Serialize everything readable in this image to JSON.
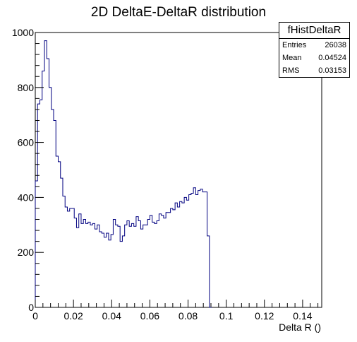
{
  "chart_data": {
    "type": "histogram",
    "title": "2D DeltaE-DeltaR distribution",
    "xlabel": "Delta R ()",
    "ylabel": "",
    "xlim": [
      0,
      0.15
    ],
    "ylim": [
      0,
      1000
    ],
    "x_ticks": [
      0,
      0.02,
      0.04,
      0.06,
      0.08,
      0.1,
      0.12,
      0.14
    ],
    "x_tick_labels": [
      "0",
      "0.02",
      "0.04",
      "0.06",
      "0.08",
      "0.1",
      "0.12",
      "0.14"
    ],
    "y_ticks": [
      0,
      200,
      400,
      600,
      800,
      1000
    ],
    "y_tick_labels": [
      "0",
      "200",
      "400",
      "600",
      "800",
      "1000"
    ],
    "y_axis_exponent": "",
    "bin_width": 0.0012,
    "bin_start": 0,
    "values": [
      460,
      740,
      755,
      860,
      970,
      905,
      800,
      720,
      680,
      550,
      530,
      470,
      405,
      365,
      350,
      360,
      360,
      325,
      290,
      340,
      305,
      320,
      305,
      310,
      300,
      305,
      285,
      300,
      275,
      270,
      255,
      270,
      245,
      265,
      320,
      300,
      295,
      240,
      260,
      300,
      315,
      295,
      305,
      295,
      330,
      315,
      285,
      300,
      300,
      320,
      335,
      310,
      305,
      315,
      340,
      335,
      325,
      345,
      345,
      360,
      355,
      380,
      365,
      385,
      380,
      400,
      390,
      410,
      415,
      435,
      410,
      425,
      430,
      420,
      420,
      260,
      0
    ],
    "line_color": "#000080",
    "stats": {
      "name": "fHistDeltaR",
      "rows": [
        {
          "label": "Entries",
          "value": "26038"
        },
        {
          "label": "Mean",
          "value": "0.04524"
        },
        {
          "label": "RMS",
          "value": "0.03153"
        }
      ]
    }
  }
}
